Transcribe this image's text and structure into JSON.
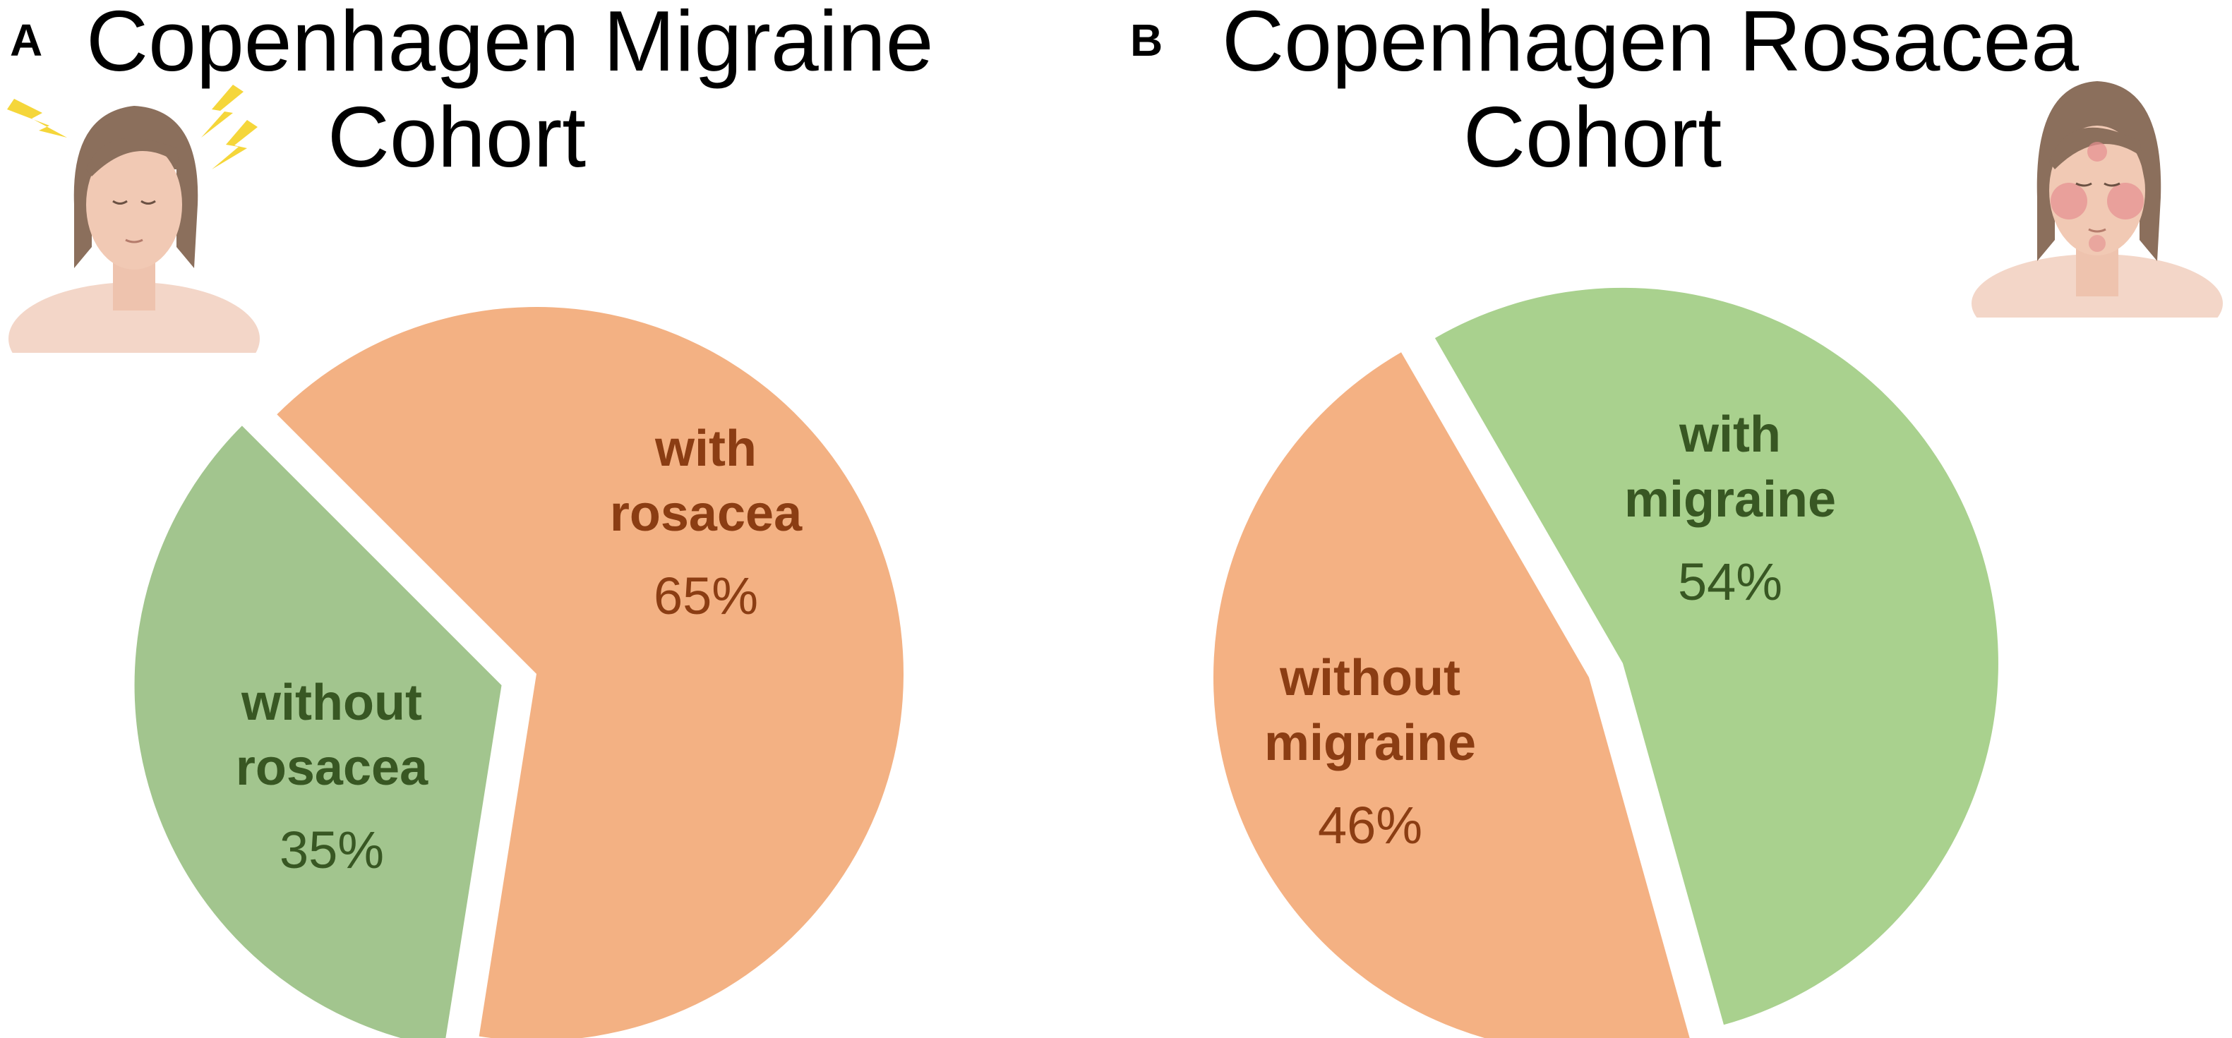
{
  "panels": [
    {
      "letter": "A",
      "title_line1": "Copenhagen Migraine",
      "title_line2": "Cohort",
      "illustration": "migraine-woman-icon",
      "chart_data": {
        "type": "pie",
        "title": "Copenhagen Migraine Cohort",
        "slices": [
          {
            "label_line1": "with",
            "label_line2": "rosacea",
            "value": 65,
            "value_text": "65%",
            "color": "#F3B183",
            "label_color": "#8B3D13",
            "exploded": false
          },
          {
            "label_line1": "without",
            "label_line2": "rosacea",
            "value": 35,
            "value_text": "35%",
            "color": "#A2C58E",
            "label_color": "#385723",
            "exploded": true
          }
        ]
      }
    },
    {
      "letter": "B",
      "title_line1": "Copenhagen Rosacea",
      "title_line2": "Cohort",
      "illustration": "rosacea-woman-icon",
      "chart_data": {
        "type": "pie",
        "title": "Copenhagen Rosacea Cohort",
        "slices": [
          {
            "label_line1": "with",
            "label_line2": "migraine",
            "value": 54,
            "value_text": "54%",
            "color": "#A9D18E",
            "label_color": "#385723",
            "exploded": true
          },
          {
            "label_line1": "without",
            "label_line2": "migraine",
            "value": 46,
            "value_text": "46%",
            "color": "#F4B183",
            "label_color": "#8B3D13",
            "exploded": false
          }
        ]
      }
    }
  ]
}
